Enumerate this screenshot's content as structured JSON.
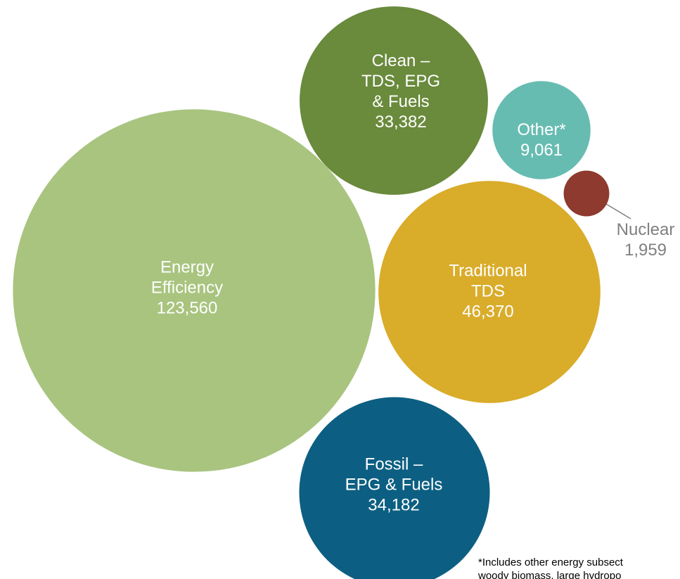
{
  "chart_data": {
    "type": "bubble",
    "categories": [
      [
        "Energy",
        "Efficiency"
      ],
      [
        "Clean –",
        "TDS, EPG",
        "& Fuels"
      ],
      [
        "Other*"
      ],
      [
        "Nuclear"
      ],
      [
        "Traditional",
        "TDS"
      ],
      [
        "Fossil –",
        "EPG & Fuels"
      ]
    ],
    "values": [
      123560,
      33382,
      9061,
      1959,
      46370,
      34182
    ],
    "value_labels": [
      "123,560",
      "33,382",
      "9,061",
      "1,959",
      "46,370",
      "34,182"
    ],
    "colors": [
      "#a8c47f",
      "#6a8a3c",
      "#67bcb2",
      "#8e3a2e",
      "#d9ac2a",
      "#0c5f82"
    ],
    "footnote": [
      "*Includes other energy subsect",
      "woody biomass, large hydropo"
    ]
  }
}
